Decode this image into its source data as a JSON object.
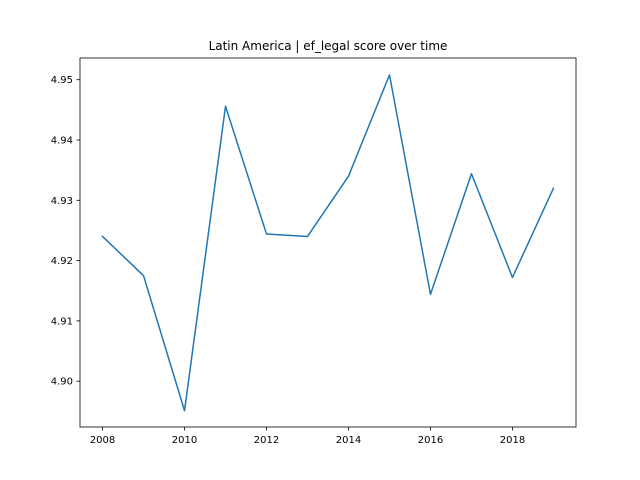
{
  "chart_data": {
    "type": "line",
    "title": "Latin America | ef_legal score over time",
    "xlabel": "",
    "ylabel": "",
    "x": [
      2008,
      2009,
      2010,
      2011,
      2012,
      2013,
      2014,
      2015,
      2016,
      2017,
      2018,
      2019
    ],
    "series": [
      {
        "values": [
          4.924,
          4.9175,
          4.8951,
          4.9456,
          4.9244,
          4.924,
          4.934,
          4.9508,
          4.9144,
          4.9344,
          4.9172,
          4.932
        ],
        "color": "#1f77b4"
      }
    ],
    "xlim": [
      2007.45,
      2019.55
    ],
    "ylim": [
      4.8924,
      4.9536
    ],
    "xticks": [
      2008,
      2010,
      2012,
      2014,
      2016,
      2018
    ],
    "xtick_labels": [
      "2008",
      "2010",
      "2012",
      "2014",
      "2016",
      "2018"
    ],
    "yticks": [
      4.9,
      4.91,
      4.92,
      4.93,
      4.94,
      4.95
    ],
    "ytick_labels": [
      "4.90",
      "4.91",
      "4.92",
      "4.93",
      "4.94",
      "4.95"
    ],
    "grid": false,
    "legend": "none"
  }
}
